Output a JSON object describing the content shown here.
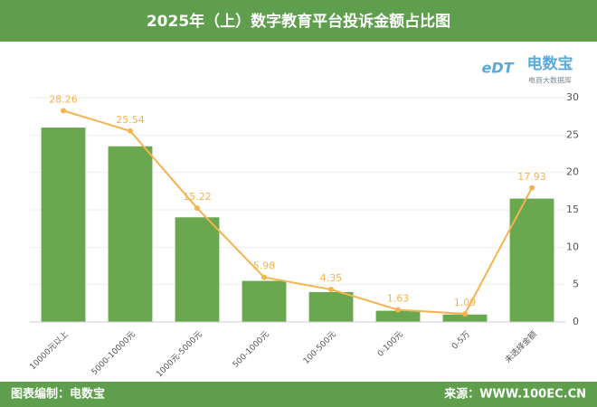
{
  "chart_data": {
    "type": "bar_line",
    "title": "2025年（上）数字教育平台投诉金额占比图",
    "categories": [
      "10000元以上",
      "5000-10000元",
      "1000元-5000元",
      "500-1000元",
      "100-500元",
      "0-100元",
      "0-5万",
      "未选择金额"
    ],
    "series": [
      {
        "type": "bar",
        "color": "#6aa84f",
        "values": [
          26,
          23.5,
          14,
          5.5,
          4,
          1.5,
          1,
          16.5
        ]
      },
      {
        "type": "line",
        "color": "#f6b24e",
        "values": [
          28.26,
          25.54,
          15.22,
          5.98,
          4.35,
          1.63,
          1.09,
          17.93
        ]
      }
    ],
    "ylim": [
      0,
      30
    ],
    "yticks": [
      0,
      5,
      10,
      15,
      20,
      25,
      30
    ],
    "grid": true
  },
  "logo": {
    "mark": "eDT",
    "name": "电数宝",
    "tagline": "电商大数据库"
  },
  "footer": {
    "left": "图表编制：电数宝",
    "right": "来源：WWW.100EC.CN"
  }
}
